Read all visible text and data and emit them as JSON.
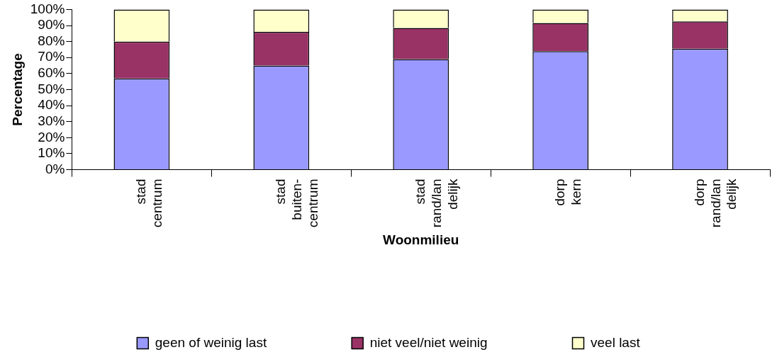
{
  "chart_data": {
    "type": "bar",
    "stacked": true,
    "xlabel": "Woonmilieu",
    "ylabel": "Percentage",
    "categories": [
      "stad\ncentrum",
      "stad\nbuiten-\ncentrum",
      "stad\nrand/lan\ndelijk",
      "dorp\nkern",
      "dorp\nrand/lan\ndelijk"
    ],
    "series": [
      {
        "name": "geen of weinig last",
        "color": "#9999ff",
        "values": [
          57,
          65,
          69,
          74,
          75.5
        ]
      },
      {
        "name": "niet veel/niet weinig",
        "color": "#993366",
        "values": [
          23,
          21,
          19.5,
          17.5,
          17
        ]
      },
      {
        "name": "veel last",
        "color": "#ffffcc",
        "values": [
          20,
          14,
          11.5,
          8.5,
          7.5
        ]
      }
    ],
    "ylim": [
      0,
      100
    ],
    "yticks": [
      {
        "value": 0,
        "label": "0%"
      },
      {
        "value": 10,
        "label": "10%"
      },
      {
        "value": 20,
        "label": "20%"
      },
      {
        "value": 30,
        "label": "30%"
      },
      {
        "value": 40,
        "label": "40%"
      },
      {
        "value": 50,
        "label": "50%"
      },
      {
        "value": 60,
        "label": "60%"
      },
      {
        "value": 70,
        "label": "70%"
      },
      {
        "value": 80,
        "label": "80%"
      },
      {
        "value": 90,
        "label": "90%"
      },
      {
        "value": 100,
        "label": "100%"
      }
    ],
    "legend": "bottom"
  }
}
